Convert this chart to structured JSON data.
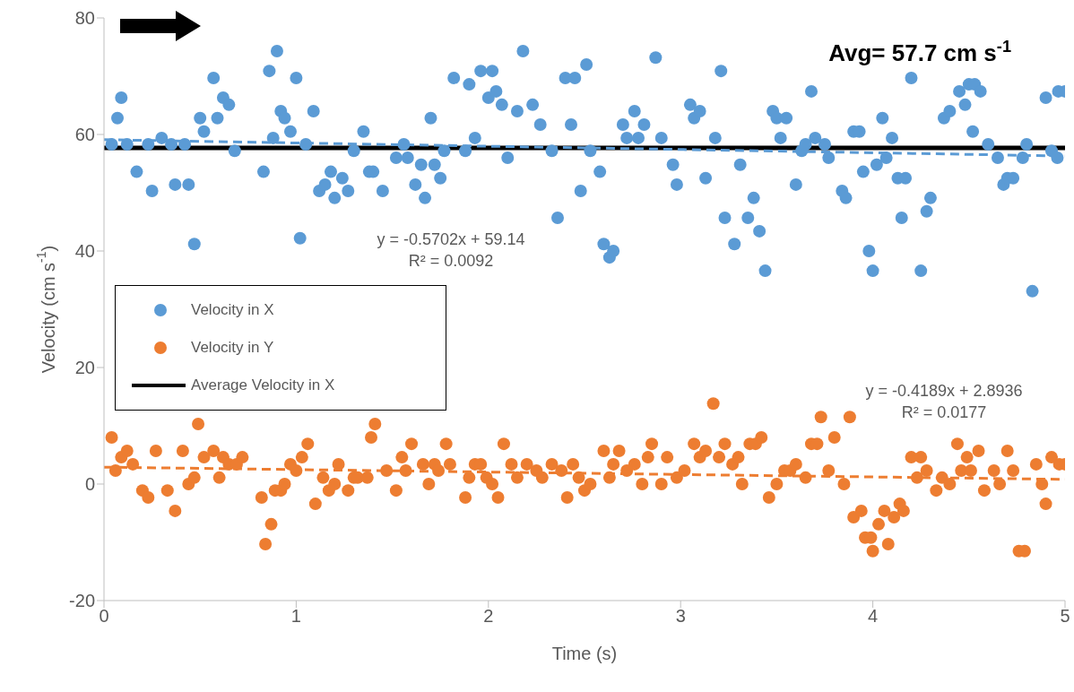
{
  "chart_data": {
    "type": "scatter",
    "xlabel": "Time (s)",
    "ylabel": "Velocity (cm s$^{-1}$)",
    "xlim": [
      0,
      5
    ],
    "xticks": [
      0,
      1,
      2,
      3,
      4,
      5
    ],
    "ylim": [
      -20,
      80
    ],
    "yticks": [
      -20,
      0,
      20,
      40,
      60,
      80
    ],
    "grid": false,
    "legend": "left",
    "marker": "circle",
    "annotations": [
      "Avg= 57.7 cm s$^{-1}$",
      "y = -0.5702x + 59.14\nR² = 0.0092",
      "y = -0.4189x + 2.8936\nR² = 0.0177"
    ],
    "series": [
      {
        "name": "Velocity in X",
        "color": "#5b9bd5",
        "x": [
          0.04,
          0.07,
          0.09,
          0.12,
          0.17,
          0.23,
          0.25,
          0.3,
          0.35,
          0.37,
          0.42,
          0.44,
          0.47,
          0.5,
          0.52,
          0.57,
          0.59,
          0.62,
          0.65,
          0.68,
          0.83,
          0.86,
          0.88,
          0.9,
          0.92,
          0.94,
          0.97,
          1.0,
          1.02,
          1.05,
          1.09,
          1.12,
          1.15,
          1.18,
          1.2,
          1.24,
          1.27,
          1.3,
          1.35,
          1.38,
          1.4,
          1.45,
          1.52,
          1.56,
          1.58,
          1.62,
          1.65,
          1.67,
          1.7,
          1.72,
          1.75,
          1.77,
          1.82,
          1.88,
          1.9,
          1.93,
          1.96,
          2.0,
          2.02,
          2.04,
          2.07,
          2.1,
          2.15,
          2.18,
          2.23,
          2.27,
          2.33,
          2.36,
          2.4,
          2.43,
          2.45,
          2.48,
          2.51,
          2.53,
          2.58,
          2.6,
          2.63,
          2.65,
          2.7,
          2.72,
          2.76,
          2.78,
          2.81,
          2.87,
          2.9,
          2.96,
          2.98,
          3.05,
          3.07,
          3.1,
          3.13,
          3.18,
          3.21,
          3.23,
          3.28,
          3.31,
          3.35,
          3.38,
          3.41,
          3.44,
          3.48,
          3.5,
          3.52,
          3.55,
          3.6,
          3.63,
          3.65,
          3.68,
          3.7,
          3.75,
          3.77,
          3.84,
          3.86,
          3.9,
          3.93,
          3.95,
          3.98,
          4.0,
          4.02,
          4.05,
          4.07,
          4.1,
          4.13,
          4.15,
          4.17,
          4.2,
          4.25,
          4.28,
          4.3,
          4.37,
          4.4,
          4.45,
          4.48,
          4.5,
          4.52,
          4.53,
          4.56,
          4.6,
          4.65,
          4.68,
          4.7,
          4.73,
          4.78,
          4.8,
          4.83,
          4.9,
          4.93,
          4.96,
          4.965,
          5.0
        ],
        "values": [
          58.3,
          62.8,
          66.3,
          58.3,
          53.6,
          58.3,
          50.3,
          59.4,
          58.3,
          51.4,
          58.3,
          51.4,
          41.2,
          62.8,
          60.5,
          69.7,
          62.8,
          66.3,
          65.1,
          57.2,
          53.6,
          70.9,
          59.4,
          74.3,
          64,
          62.8,
          60.5,
          69.7,
          42.2,
          58.3,
          64,
          50.3,
          51.4,
          53.6,
          49.1,
          52.5,
          50.3,
          57.2,
          60.5,
          53.6,
          53.6,
          50.3,
          56,
          58.3,
          56,
          51.4,
          54.8,
          49.1,
          62.8,
          54.8,
          52.5,
          57.2,
          69.7,
          57.2,
          68.6,
          59.4,
          70.9,
          66.3,
          70.9,
          67.4,
          65.1,
          56,
          64,
          74.3,
          65.1,
          61.7,
          57.2,
          45.7,
          69.7,
          61.7,
          69.7,
          50.3,
          72,
          57.2,
          53.6,
          41.2,
          38.9,
          40,
          61.7,
          59.4,
          64,
          59.4,
          61.7,
          73.2,
          59.4,
          54.8,
          51.4,
          65.1,
          62.8,
          64,
          52.5,
          59.4,
          70.9,
          45.7,
          41.2,
          54.8,
          45.7,
          49.1,
          43.4,
          36.6,
          64,
          62.8,
          59.4,
          62.8,
          51.4,
          57.2,
          58.3,
          67.4,
          59.4,
          58.3,
          56,
          50.3,
          49.1,
          60.5,
          60.5,
          53.6,
          40,
          36.6,
          54.8,
          62.8,
          56,
          59.4,
          52.5,
          45.7,
          52.5,
          69.7,
          36.6,
          46.8,
          49.1,
          62.8,
          64,
          67.4,
          65.1,
          68.6,
          60.5,
          68.6,
          67.4,
          58.3,
          56,
          51.4,
          52.5,
          52.5,
          56,
          58.3,
          33.1,
          66.3,
          57.2,
          56,
          67.4,
          67.4
        ]
      },
      {
        "name": "Velocity in Y",
        "color": "#ed7d31",
        "x": [
          0.04,
          0.06,
          0.09,
          0.12,
          0.15,
          0.2,
          0.23,
          0.27,
          0.33,
          0.37,
          0.41,
          0.44,
          0.47,
          0.49,
          0.52,
          0.57,
          0.6,
          0.62,
          0.65,
          0.69,
          0.72,
          0.82,
          0.84,
          0.87,
          0.89,
          0.92,
          0.94,
          0.97,
          1.0,
          1.03,
          1.06,
          1.1,
          1.14,
          1.17,
          1.2,
          1.22,
          1.27,
          1.3,
          1.32,
          1.37,
          1.39,
          1.41,
          1.47,
          1.52,
          1.55,
          1.57,
          1.6,
          1.66,
          1.69,
          1.72,
          1.74,
          1.78,
          1.8,
          1.88,
          1.9,
          1.93,
          1.96,
          1.99,
          2.02,
          2.05,
          2.08,
          2.12,
          2.15,
          2.2,
          2.25,
          2.28,
          2.33,
          2.38,
          2.41,
          2.44,
          2.47,
          2.5,
          2.53,
          2.6,
          2.63,
          2.65,
          2.68,
          2.72,
          2.76,
          2.8,
          2.83,
          2.85,
          2.9,
          2.93,
          2.98,
          3.02,
          3.07,
          3.1,
          3.13,
          3.17,
          3.2,
          3.23,
          3.27,
          3.3,
          3.32,
          3.36,
          3.39,
          3.42,
          3.46,
          3.5,
          3.54,
          3.57,
          3.6,
          3.65,
          3.68,
          3.71,
          3.73,
          3.77,
          3.8,
          3.85,
          3.88,
          3.9,
          3.94,
          3.96,
          3.99,
          4.0,
          4.03,
          4.06,
          4.08,
          4.11,
          4.14,
          4.16,
          4.2,
          4.23,
          4.25,
          4.28,
          4.33,
          4.36,
          4.4,
          4.44,
          4.46,
          4.49,
          4.51,
          4.55,
          4.58,
          4.63,
          4.66,
          4.7,
          4.73,
          4.76,
          4.79,
          4.85,
          4.88,
          4.9,
          4.93,
          4.97,
          5.0
        ],
        "values": [
          8,
          2.3,
          4.6,
          5.7,
          3.4,
          -1.1,
          -2.3,
          5.7,
          -1.1,
          -4.6,
          5.7,
          0,
          1.1,
          10.3,
          4.6,
          5.7,
          1.1,
          4.6,
          3.4,
          3.4,
          4.6,
          -2.3,
          -10.3,
          -6.9,
          -1.1,
          -1.1,
          0,
          3.4,
          2.3,
          4.6,
          6.9,
          -3.4,
          1.1,
          -1.1,
          0,
          3.4,
          -1.1,
          1.1,
          1.1,
          1.1,
          8,
          10.3,
          2.3,
          -1.1,
          4.6,
          2.3,
          6.9,
          3.4,
          0,
          3.4,
          2.3,
          6.9,
          3.4,
          -2.3,
          1.1,
          3.4,
          3.4,
          1.1,
          0,
          -2.3,
          6.9,
          3.4,
          1.1,
          3.4,
          2.3,
          1.1,
          3.4,
          2.3,
          -2.3,
          3.4,
          1.1,
          -1.1,
          0,
          5.7,
          1.1,
          3.4,
          5.7,
          2.3,
          3.4,
          0,
          4.6,
          6.9,
          0,
          4.6,
          1.1,
          2.3,
          6.9,
          4.6,
          5.7,
          13.8,
          4.6,
          6.9,
          3.4,
          4.6,
          0,
          6.9,
          6.9,
          8,
          -2.3,
          0,
          2.3,
          2.3,
          3.4,
          1.1,
          6.9,
          6.9,
          11.5,
          2.3,
          8,
          0,
          11.5,
          -5.7,
          -4.6,
          -9.2,
          -9.2,
          -11.5,
          -6.9,
          -4.6,
          -10.3,
          -5.7,
          -3.4,
          -4.6,
          4.6,
          1.1,
          4.6,
          2.3,
          -1.1,
          1.1,
          0,
          6.9,
          2.3,
          4.6,
          2.3,
          5.7,
          -1.1,
          2.3,
          0,
          5.7,
          2.3,
          -11.5,
          -11.5,
          3.4,
          0,
          -3.4,
          4.6,
          3.4,
          3.4
        ]
      },
      {
        "name": "Average Velocity in X",
        "type": "line",
        "color": "#000000",
        "marker": "none",
        "line_style": "solid",
        "x": [
          0,
          5
        ],
        "values": [
          57.7,
          57.7
        ]
      },
      {
        "type": "line",
        "color": "#5b9bd5",
        "marker": "none",
        "line_style": "dashed",
        "x": [
          0,
          5
        ],
        "values": [
          59.1,
          56.3
        ]
      },
      {
        "type": "line",
        "color": "#ed7d31",
        "marker": "none",
        "line_style": "dashed",
        "x": [
          0,
          5
        ],
        "values": [
          2.9,
          0.8
        ]
      }
    ]
  }
}
